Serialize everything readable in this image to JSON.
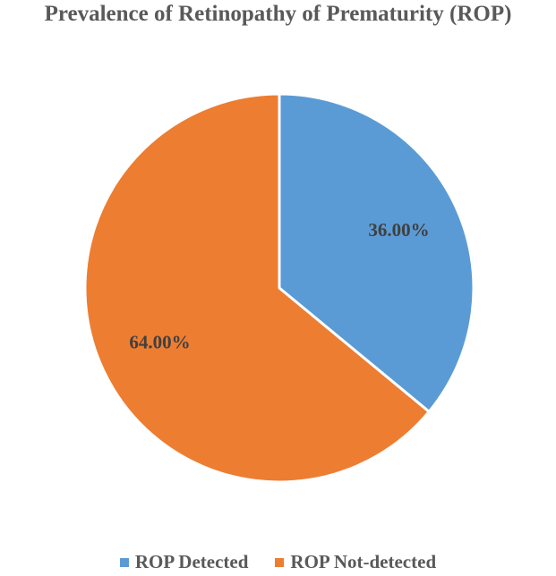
{
  "chart_data": {
    "type": "pie",
    "title": "Prevalence of Retinopathy of Prematurity (ROP)",
    "slices": [
      {
        "name": "ROP Detected",
        "value": 36.0,
        "label": "36.00%",
        "color": "#5B9BD5"
      },
      {
        "name": "ROP Not-detected",
        "value": 64.0,
        "label": "64.00%",
        "color": "#ED7D31"
      }
    ],
    "legend_position": "bottom",
    "start_angle": "12 o'clock, clockwise"
  }
}
